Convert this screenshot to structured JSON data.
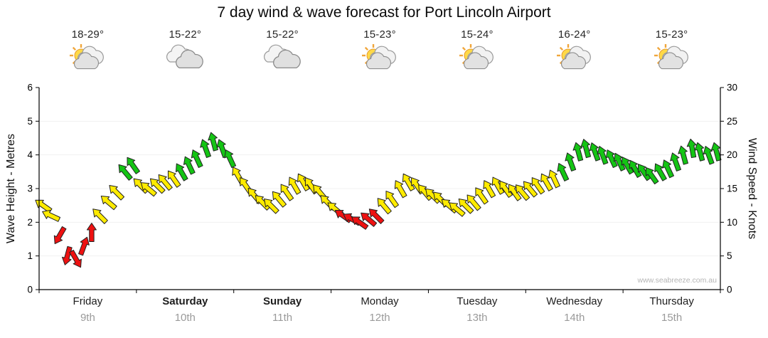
{
  "title": "7 day wind & wave forecast for Port Lincoln Airport",
  "watermark": "www.seabreeze.com.au",
  "days": [
    {
      "name": "Friday",
      "date": "9th",
      "temp": "18-29°",
      "icon": "partly-sunny",
      "bold": false
    },
    {
      "name": "Saturday",
      "date": "10th",
      "temp": "15-22°",
      "icon": "cloudy",
      "bold": true
    },
    {
      "name": "Sunday",
      "date": "11th",
      "temp": "15-22°",
      "icon": "cloudy",
      "bold": true
    },
    {
      "name": "Monday",
      "date": "12th",
      "temp": "15-23°",
      "icon": "partly-sunny",
      "bold": false
    },
    {
      "name": "Tuesday",
      "date": "13th",
      "temp": "15-24°",
      "icon": "partly-sunny",
      "bold": false
    },
    {
      "name": "Wednesday",
      "date": "14th",
      "temp": "16-24°",
      "icon": "partly-sunny",
      "bold": false
    },
    {
      "name": "Thursday",
      "date": "15th",
      "temp": "15-23°",
      "icon": "partly-sunny",
      "bold": false
    }
  ],
  "chart_data": {
    "type": "scatter",
    "title": "7 day wind & wave forecast for Port Lincoln Airport",
    "x_axis": {
      "range_days": [
        0,
        7
      ],
      "day_labels": [
        "Friday",
        "Saturday",
        "Sunday",
        "Monday",
        "Tuesday",
        "Wednesday",
        "Thursday"
      ],
      "day_dates": [
        "9th",
        "10th",
        "11th",
        "12th",
        "13th",
        "14th",
        "15th"
      ]
    },
    "y_left": {
      "label": "Wave Height - Metres",
      "min": 0,
      "max": 6,
      "ticks": [
        0,
        1,
        2,
        3,
        4,
        5,
        6
      ]
    },
    "y_right": {
      "label": "Wind Speed - Knots",
      "min": 0,
      "max": 30,
      "ticks": [
        0,
        5,
        10,
        15,
        20,
        25,
        30
      ]
    },
    "grid": false,
    "legend": "none",
    "colors": {
      "r": "#ee1111",
      "y": "#ffeb00",
      "g": "#14c414",
      "outline": "#222222"
    },
    "color_meaning": {
      "r": "light winds",
      "y": "moderate winds",
      "g": "fresh winds"
    },
    "series": [
      {
        "name": "wind-speed-arrows",
        "unit": "knots",
        "point_format": [
          "t_days",
          "knots",
          "arrow_dir_deg",
          "color"
        ],
        "points": [
          [
            0.04,
            12.5,
            -55,
            "y"
          ],
          [
            0.12,
            11,
            -65,
            "y"
          ],
          [
            0.21,
            8,
            -150,
            "r"
          ],
          [
            0.29,
            5,
            -165,
            "r"
          ],
          [
            0.38,
            4.5,
            150,
            "r"
          ],
          [
            0.46,
            6.5,
            20,
            "r"
          ],
          [
            0.54,
            8.5,
            0,
            "r"
          ],
          [
            0.62,
            11,
            -45,
            "y"
          ],
          [
            0.71,
            13,
            -50,
            "y"
          ],
          [
            0.79,
            14.5,
            -45,
            "y"
          ],
          [
            0.88,
            17.5,
            -40,
            "g"
          ],
          [
            0.96,
            18.5,
            -35,
            "g"
          ],
          [
            1.04,
            15.5,
            -45,
            "y"
          ],
          [
            1.12,
            15,
            -50,
            "y"
          ],
          [
            1.21,
            15.5,
            -45,
            "y"
          ],
          [
            1.29,
            16,
            -40,
            "y"
          ],
          [
            1.38,
            16.5,
            -35,
            "y"
          ],
          [
            1.46,
            17.5,
            -30,
            "g"
          ],
          [
            1.54,
            18.5,
            -25,
            "g"
          ],
          [
            1.62,
            19.5,
            -25,
            "g"
          ],
          [
            1.71,
            21,
            -20,
            "g"
          ],
          [
            1.79,
            22,
            -15,
            "g"
          ],
          [
            1.88,
            21,
            -20,
            "g"
          ],
          [
            1.96,
            19.5,
            -25,
            "g"
          ],
          [
            2.04,
            17,
            -30,
            "y"
          ],
          [
            2.12,
            15.5,
            -35,
            "y"
          ],
          [
            2.21,
            14,
            -40,
            "y"
          ],
          [
            2.29,
            13,
            -45,
            "y"
          ],
          [
            2.38,
            12.5,
            -45,
            "y"
          ],
          [
            2.46,
            13.5,
            -40,
            "y"
          ],
          [
            2.54,
            14.5,
            -35,
            "y"
          ],
          [
            2.62,
            15.5,
            -30,
            "y"
          ],
          [
            2.71,
            16,
            -30,
            "y"
          ],
          [
            2.79,
            15.5,
            -35,
            "y"
          ],
          [
            2.88,
            14.5,
            -40,
            "y"
          ],
          [
            2.96,
            13,
            -45,
            "y"
          ],
          [
            3.04,
            12,
            -50,
            "y"
          ],
          [
            3.12,
            11,
            -55,
            "r"
          ],
          [
            3.21,
            10.5,
            -60,
            "r"
          ],
          [
            3.29,
            10,
            -55,
            "r"
          ],
          [
            3.38,
            10.5,
            -50,
            "r"
          ],
          [
            3.46,
            11,
            -45,
            "r"
          ],
          [
            3.54,
            12.5,
            -40,
            "y"
          ],
          [
            3.62,
            13.5,
            -35,
            "y"
          ],
          [
            3.71,
            15,
            -30,
            "y"
          ],
          [
            3.79,
            16,
            -30,
            "y"
          ],
          [
            3.88,
            15.5,
            -35,
            "y"
          ],
          [
            3.96,
            14.5,
            -40,
            "y"
          ],
          [
            4.04,
            14,
            -45,
            "y"
          ],
          [
            4.12,
            13.5,
            -45,
            "y"
          ],
          [
            4.21,
            12.5,
            -50,
            "y"
          ],
          [
            4.29,
            12,
            -50,
            "y"
          ],
          [
            4.38,
            12.5,
            -45,
            "y"
          ],
          [
            4.46,
            13,
            -40,
            "y"
          ],
          [
            4.54,
            14,
            -35,
            "y"
          ],
          [
            4.62,
            15,
            -30,
            "y"
          ],
          [
            4.71,
            15.5,
            -30,
            "y"
          ],
          [
            4.79,
            15,
            -35,
            "y"
          ],
          [
            4.88,
            14.5,
            -35,
            "y"
          ],
          [
            4.96,
            14.5,
            -40,
            "y"
          ],
          [
            5.04,
            15,
            -40,
            "y"
          ],
          [
            5.12,
            15.5,
            -35,
            "y"
          ],
          [
            5.21,
            16,
            -30,
            "y"
          ],
          [
            5.29,
            16.5,
            -25,
            "y"
          ],
          [
            5.38,
            17.5,
            -25,
            "g"
          ],
          [
            5.46,
            19,
            -20,
            "g"
          ],
          [
            5.54,
            20.5,
            -15,
            "g"
          ],
          [
            5.62,
            21,
            -15,
            "g"
          ],
          [
            5.71,
            20.5,
            -20,
            "g"
          ],
          [
            5.79,
            20,
            -20,
            "g"
          ],
          [
            5.88,
            19.5,
            -25,
            "g"
          ],
          [
            5.96,
            19,
            -25,
            "g"
          ],
          [
            6.04,
            18.5,
            -30,
            "g"
          ],
          [
            6.12,
            18,
            -30,
            "g"
          ],
          [
            6.21,
            17.5,
            -35,
            "g"
          ],
          [
            6.29,
            17,
            -35,
            "g"
          ],
          [
            6.38,
            17.5,
            -30,
            "g"
          ],
          [
            6.46,
            18,
            -25,
            "g"
          ],
          [
            6.54,
            19,
            -20,
            "g"
          ],
          [
            6.62,
            20,
            -15,
            "g"
          ],
          [
            6.71,
            21,
            -10,
            "g"
          ],
          [
            6.79,
            20.5,
            -15,
            "g"
          ],
          [
            6.88,
            20,
            -20,
            "g"
          ],
          [
            6.96,
            20.5,
            -15,
            "g"
          ]
        ]
      }
    ]
  }
}
